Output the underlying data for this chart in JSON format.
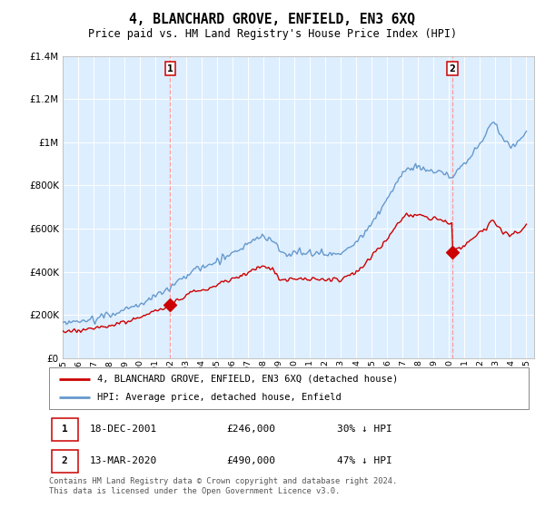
{
  "title": "4, BLANCHARD GROVE, ENFIELD, EN3 6XQ",
  "subtitle": "Price paid vs. HM Land Registry's House Price Index (HPI)",
  "legend_line1": "4, BLANCHARD GROVE, ENFIELD, EN3 6XQ (detached house)",
  "legend_line2": "HPI: Average price, detached house, Enfield",
  "annotation1_text": "18-DEC-2001",
  "annotation1_price_text": "£246,000",
  "annotation1_pct_text": "30% ↓ HPI",
  "annotation2_text": "13-MAR-2020",
  "annotation2_price_text": "£490,000",
  "annotation2_pct_text": "47% ↓ HPI",
  "footer": "Contains HM Land Registry data © Crown copyright and database right 2024.\nThis data is licensed under the Open Government Licence v3.0.",
  "sale_color": "#cc0000",
  "hpi_color": "#6699cc",
  "plot_bg": "#ddeeff",
  "annotation_color": "#cc0000",
  "vline_color": "#ff9999",
  "ylim": [
    0,
    1400000
  ],
  "yticks": [
    0,
    200000,
    400000,
    600000,
    800000,
    1000000,
    1200000,
    1400000
  ],
  "background_color": "#ffffff",
  "grid_color": "#ffffff",
  "sale1_year": 2001.96,
  "sale1_price": 246000,
  "sale2_year": 2020.21,
  "sale2_price": 490000
}
